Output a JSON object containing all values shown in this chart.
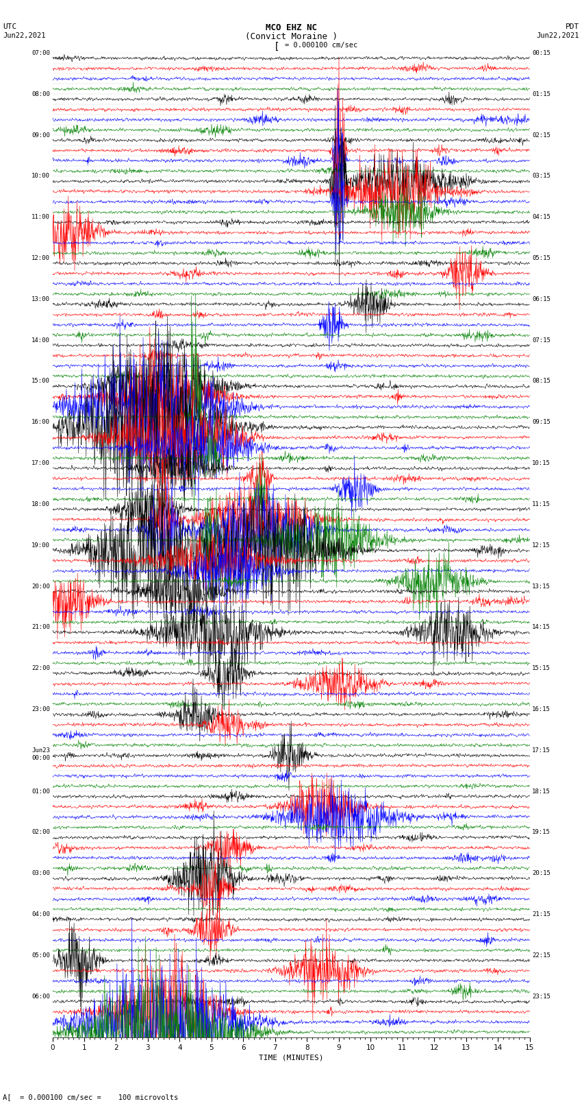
{
  "title_line1": "MCO EHZ NC",
  "title_line2": "(Convict Moraine )",
  "scale_label": "= 0.000100 cm/sec",
  "footer_label": "= 0.000100 cm/sec =    100 microvolts",
  "xlabel": "TIME (MINUTES)",
  "left_times_labeled": [
    "07:00",
    "08:00",
    "09:00",
    "10:00",
    "11:00",
    "12:00",
    "13:00",
    "14:00",
    "15:00",
    "16:00",
    "17:00",
    "18:00",
    "19:00",
    "20:00",
    "21:00",
    "22:00",
    "23:00",
    "Jun23\n00:00",
    "01:00",
    "02:00",
    "03:00",
    "04:00",
    "05:00",
    "06:00"
  ],
  "right_times_labeled": [
    "00:15",
    "01:15",
    "02:15",
    "03:15",
    "04:15",
    "05:15",
    "06:15",
    "07:15",
    "08:15",
    "09:15",
    "10:15",
    "11:15",
    "12:15",
    "13:15",
    "14:15",
    "15:15",
    "16:15",
    "17:15",
    "18:15",
    "19:15",
    "20:15",
    "21:15",
    "22:15",
    "23:15"
  ],
  "num_hours": 24,
  "traces_per_hour": 4,
  "colors": [
    "black",
    "red",
    "blue",
    "green"
  ],
  "bg_color": "#ffffff",
  "line_width": 0.4,
  "xmin": 0,
  "xmax": 15,
  "xticks": [
    0,
    1,
    2,
    3,
    4,
    5,
    6,
    7,
    8,
    9,
    10,
    11,
    12,
    13,
    14,
    15
  ]
}
